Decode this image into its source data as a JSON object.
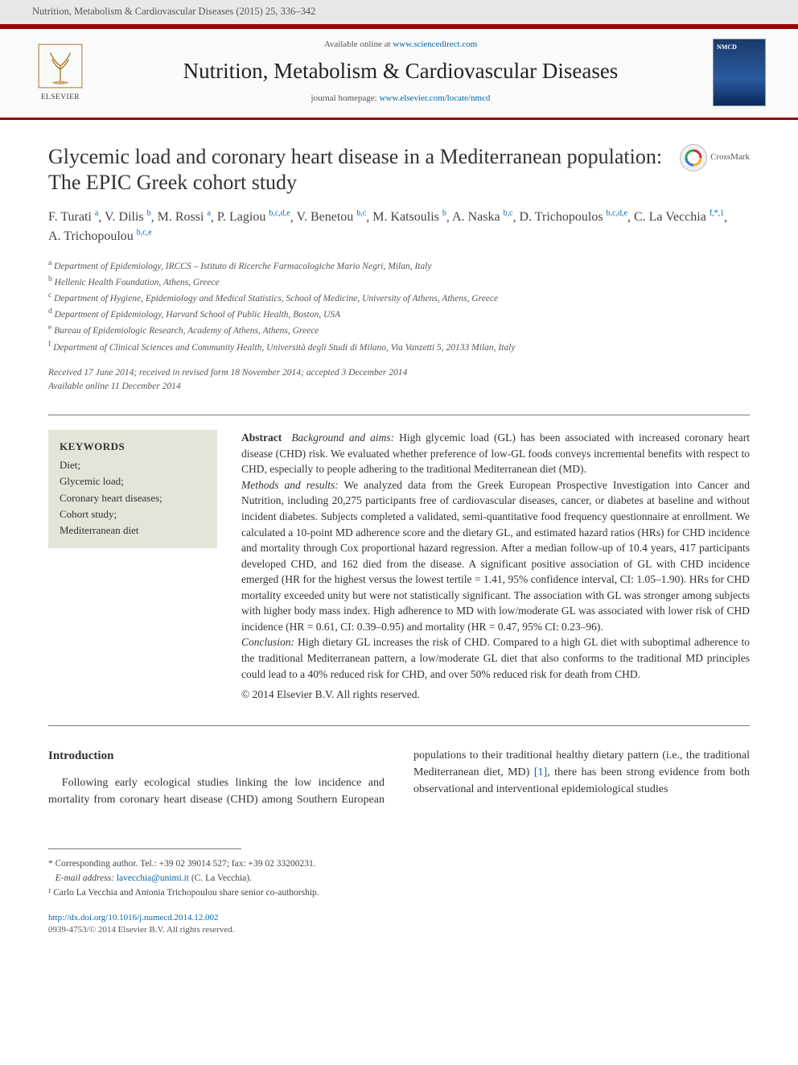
{
  "header": {
    "citation": "Nutrition, Metabolism & Cardiovascular Diseases (2015) 25, 336–342"
  },
  "journal_box": {
    "available_prefix": "Available online at ",
    "available_link": "www.sciencedirect.com",
    "journal_name": "Nutrition, Metabolism & Cardiovascular Diseases",
    "homepage_prefix": "journal homepage: ",
    "homepage_link": "www.elsevier.com/locate/nmcd",
    "publisher_label": "ELSEVIER"
  },
  "crossmark": {
    "label": "CrossMark"
  },
  "article": {
    "title": "Glycemic load and coronary heart disease in a Mediterranean population: The EPIC Greek cohort study",
    "authors": [
      {
        "name": "F. Turati",
        "aff": "a"
      },
      {
        "name": "V. Dilis",
        "aff": "b"
      },
      {
        "name": "M. Rossi",
        "aff": "a"
      },
      {
        "name": "P. Lagiou",
        "aff": "b,c,d,e"
      },
      {
        "name": "V. Benetou",
        "aff": "b,c"
      },
      {
        "name": "M. Katsoulis",
        "aff": "b"
      },
      {
        "name": "A. Naska",
        "aff": "b,c"
      },
      {
        "name": "D. Trichopoulos",
        "aff": "b,c,d,e"
      },
      {
        "name": "C. La Vecchia",
        "aff": "f,*,1"
      },
      {
        "name": "A. Trichopoulou",
        "aff": "b,c,e"
      }
    ],
    "affiliations": [
      {
        "key": "a",
        "text": "Department of Epidemiology, IRCCS – Istituto di Ricerche Farmacologiche Mario Negri, Milan, Italy"
      },
      {
        "key": "b",
        "text": "Hellenic Health Foundation, Athens, Greece"
      },
      {
        "key": "c",
        "text": "Department of Hygiene, Epidemiology and Medical Statistics, School of Medicine, University of Athens, Athens, Greece"
      },
      {
        "key": "d",
        "text": "Department of Epidemiology, Harvard School of Public Health, Boston, USA"
      },
      {
        "key": "e",
        "text": "Bureau of Epidemiologic Research, Academy of Athens, Athens, Greece"
      },
      {
        "key": "f",
        "text": "Department of Clinical Sciences and Community Health, Università degli Studi di Milano, Via Vanzetti 5, 20133 Milan, Italy"
      }
    ],
    "dates": {
      "line1": "Received 17 June 2014; received in revised form 18 November 2014; accepted 3 December 2014",
      "line2": "Available online 11 December 2014"
    }
  },
  "keywords": {
    "heading": "KEYWORDS",
    "items": [
      "Diet;",
      "Glycemic load;",
      "Coronary heart diseases;",
      "Cohort study;",
      "Mediterranean diet"
    ]
  },
  "abstract": {
    "label": "Abstract",
    "sections": [
      {
        "head": "Background and aims:",
        "text": " High glycemic load (GL) has been associated with increased coronary heart disease (CHD) risk. We evaluated whether preference of low-GL foods conveys incremental benefits with respect to CHD, especially to people adhering to the traditional Mediterranean diet (MD)."
      },
      {
        "head": "Methods and results:",
        "text": " We analyzed data from the Greek European Prospective Investigation into Cancer and Nutrition, including 20,275 participants free of cardiovascular diseases, cancer, or diabetes at baseline and without incident diabetes. Subjects completed a validated, semi-quantitative food frequency questionnaire at enrollment. We calculated a 10-point MD adherence score and the dietary GL, and estimated hazard ratios (HRs) for CHD incidence and mortality through Cox proportional hazard regression. After a median follow-up of 10.4 years, 417 participants developed CHD, and 162 died from the disease. A significant positive association of GL with CHD incidence emerged (HR for the highest versus the lowest tertile = 1.41, 95% confidence interval, CI: 1.05–1.90). HRs for CHD mortality exceeded unity but were not statistically significant. The association with GL was stronger among subjects with higher body mass index. High adherence to MD with low/moderate GL was associated with lower risk of CHD incidence (HR = 0.61, CI: 0.39–0.95) and mortality (HR = 0.47, 95% CI: 0.23–96)."
      },
      {
        "head": "Conclusion:",
        "text": " High dietary GL increases the risk of CHD. Compared to a high GL diet with suboptimal adherence to the traditional Mediterranean pattern, a low/moderate GL diet that also conforms to the traditional MD principles could lead to a 40% reduced risk for CHD, and over 50% reduced risk for death from CHD."
      }
    ],
    "copyright": "© 2014 Elsevier B.V. All rights reserved."
  },
  "body": {
    "intro_heading": "Introduction",
    "intro_para": "Following early ecological studies linking the low incidence and mortality from coronary heart disease (CHD) among Southern European populations to their traditional healthy dietary pattern (i.e., the traditional Mediterranean diet, MD) [1], there has been strong evidence from both observational and interventional epidemiological studies",
    "ref1": "[1]"
  },
  "footnotes": {
    "corr": "* Corresponding author. Tel.: +39 02 39014 527; fax: +39 02 33200231.",
    "email_label": "E-mail address:",
    "email": "lavecchia@unimi.it",
    "email_who": " (C. La Vecchia).",
    "note1": "¹ Carlo La Vecchia and Antonia Trichopoulou share senior co-authorship."
  },
  "footer": {
    "doi": "http://dx.doi.org/10.1016/j.numecd.2014.12.002",
    "issn_line": "0939-4753/© 2014 Elsevier B.V. All rights reserved."
  },
  "colors": {
    "accent": "#990000",
    "link": "#0066aa",
    "header_bg": "#e8e8e8",
    "kw_bg": "#e4e4d8",
    "text": "#333333"
  }
}
